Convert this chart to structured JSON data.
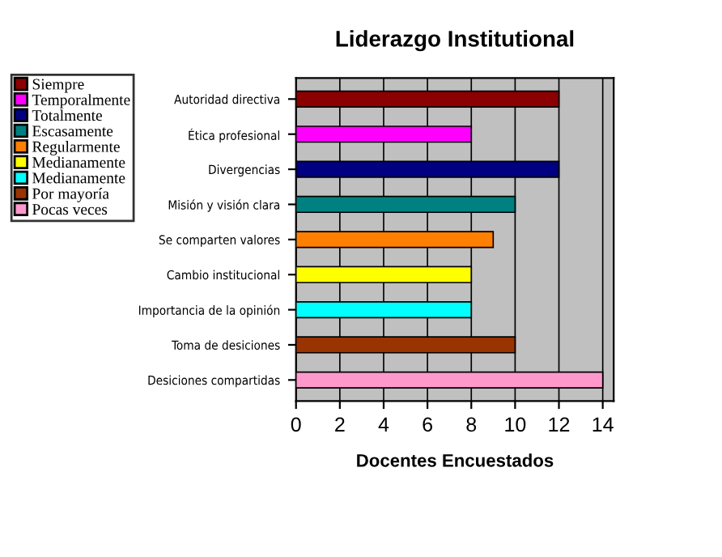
{
  "chart_data": {
    "type": "bar",
    "orientation": "horizontal",
    "title": "Liderazgo Institutional",
    "xlabel": "Docentes Encuestados",
    "categories": [
      "Autoridad directiva",
      "Ética profesional",
      "Divergencias",
      "Misión y visión clara",
      "Se comparten valores",
      "Cambio institucional",
      "Importancia de la opinión",
      "Toma de desiciones",
      "Desiciones compartidas"
    ],
    "series": [
      {
        "name": "Siempre",
        "color": "#8b0000",
        "values": [
          12,
          null,
          null,
          null,
          null,
          null,
          null,
          null,
          null
        ]
      },
      {
        "name": "Temporalmente",
        "color": "#ff00ff",
        "values": [
          null,
          8,
          null,
          null,
          null,
          null,
          null,
          null,
          null
        ]
      },
      {
        "name": "Totalmente",
        "color": "#000080",
        "values": [
          null,
          null,
          12,
          null,
          null,
          null,
          null,
          null,
          null
        ]
      },
      {
        "name": "Escasamente",
        "color": "#008080",
        "values": [
          null,
          null,
          null,
          10,
          null,
          null,
          null,
          null,
          null
        ]
      },
      {
        "name": "Regularmente",
        "color": "#ff8000",
        "values": [
          null,
          null,
          null,
          null,
          9,
          null,
          null,
          null,
          null
        ]
      },
      {
        "name": "Medianamente",
        "color": "#ffff00",
        "values": [
          null,
          null,
          null,
          null,
          null,
          8,
          null,
          null,
          null
        ]
      },
      {
        "name": "Medianamente",
        "color": "#00ffff",
        "values": [
          null,
          null,
          null,
          null,
          null,
          null,
          8,
          null,
          null
        ]
      },
      {
        "name": "Por mayoría",
        "color": "#993300",
        "values": [
          null,
          null,
          null,
          null,
          null,
          null,
          null,
          10,
          null
        ]
      },
      {
        "name": "Pocas veces",
        "color": "#ff99cc",
        "values": [
          null,
          null,
          null,
          null,
          null,
          null,
          null,
          null,
          14
        ]
      }
    ],
    "xlim": [
      0,
      14.5
    ],
    "xticks": [
      0,
      2,
      4,
      6,
      8,
      10,
      12,
      14
    ],
    "grid": "x",
    "legend": "left"
  }
}
